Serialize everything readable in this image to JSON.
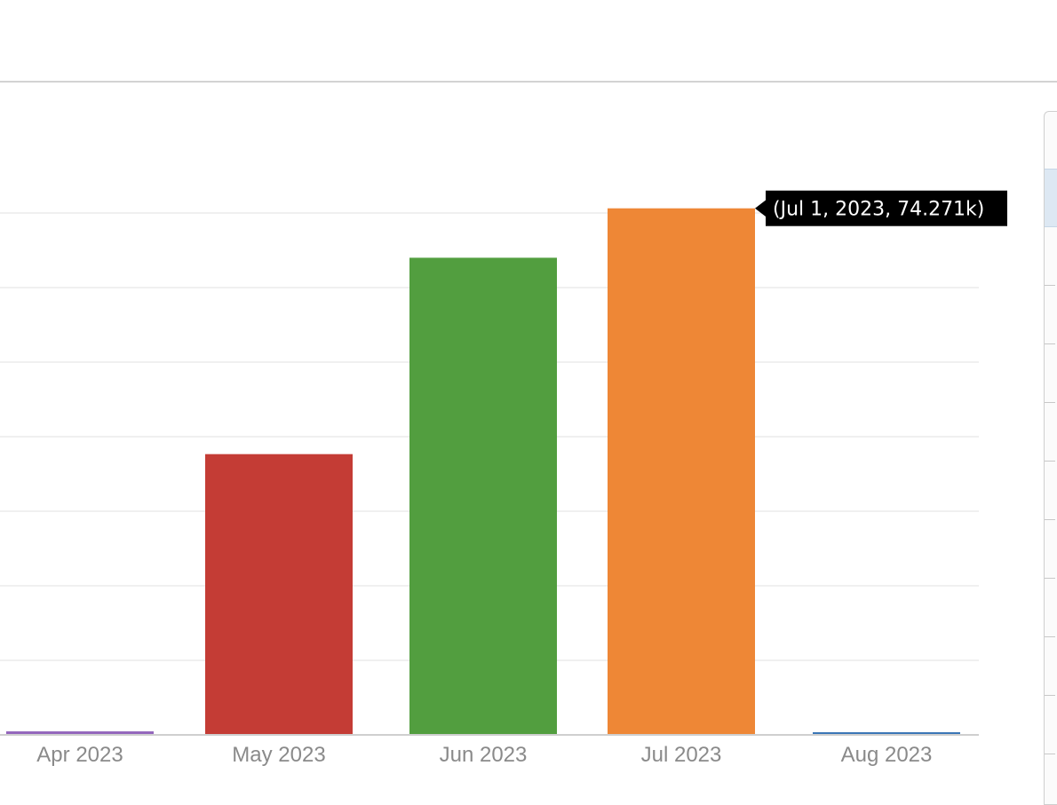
{
  "chart_data": {
    "type": "bar",
    "categories": [
      "Apr 2023",
      "May 2023",
      "Jun 2023",
      "Jul 2023",
      "Aug 2023"
    ],
    "series": [
      {
        "values": [
          0.5,
          39.6,
          67.3,
          74.271,
          0.2
        ],
        "colors": [
          "#9467bd",
          "#c43c35",
          "#529e3f",
          "#ee8736",
          "#3b76b6"
        ]
      }
    ],
    "xlabel": "",
    "ylabel": "",
    "ylim": [
      0,
      84
    ],
    "grid": true,
    "tooltip": {
      "text": "(Jul 1, 2023, 74.271k)",
      "category": "Jul 2023"
    }
  }
}
